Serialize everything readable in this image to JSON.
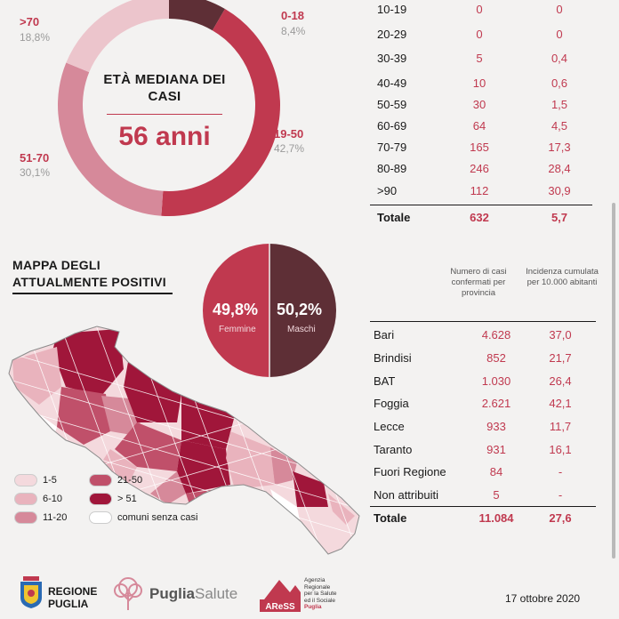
{
  "chart_data": [
    {
      "type": "pie",
      "title": "ETÀ MEDIANA DEI CASI",
      "center_value": "56 anni",
      "slices": [
        {
          "label": "0-18",
          "pct_text": "8,4%",
          "value": 8.4,
          "color": "#5e2f36"
        },
        {
          "label": "19-50",
          "pct_text": "42,7%",
          "value": 42.7,
          "color": "#c0394f"
        },
        {
          "label": "51-70",
          "pct_text": "30,1%",
          "value": 30.1,
          "color": "#d6899a"
        },
        {
          "label": ">70",
          "pct_text": "18,8%",
          "value": 18.8,
          "color": "#ecc5cc"
        }
      ]
    },
    {
      "type": "table",
      "rows": [
        {
          "age": "10-19",
          "cases": "0",
          "rate": "0"
        },
        {
          "age": "20-29",
          "cases": "0",
          "rate": "0"
        },
        {
          "age": "30-39",
          "cases": "5",
          "rate": "0,4"
        },
        {
          "age": "40-49",
          "cases": "10",
          "rate": "0,6"
        },
        {
          "age": "50-59",
          "cases": "30",
          "rate": "1,5"
        },
        {
          "age": "60-69",
          "cases": "64",
          "rate": "4,5"
        },
        {
          "age": "70-79",
          "cases": "165",
          "rate": "17,3"
        },
        {
          "age": "80-89",
          "cases": "246",
          "rate": "28,4"
        },
        {
          "age": ">90",
          "cases": "112",
          "rate": "30,9"
        }
      ],
      "total": {
        "label": "Totale",
        "cases": "632",
        "rate": "5,7"
      }
    },
    {
      "type": "pie",
      "slices": [
        {
          "label": "Femmine",
          "pct_text": "49,8%",
          "value": 49.8,
          "color": "#c0394f"
        },
        {
          "label": "Maschi",
          "pct_text": "50,2%",
          "value": 50.2,
          "color": "#5e2f36"
        }
      ]
    },
    {
      "type": "table",
      "headers": [
        "Numero di casi confermati per provincia",
        "Incidenza cumulata per 10.000 abitanti"
      ],
      "rows": [
        {
          "name": "Bari",
          "cases": "4.628",
          "rate": "37,0"
        },
        {
          "name": "Brindisi",
          "cases": "852",
          "rate": "21,7"
        },
        {
          "name": "BAT",
          "cases": "1.030",
          "rate": "26,4"
        },
        {
          "name": "Foggia",
          "cases": "2.621",
          "rate": "42,1"
        },
        {
          "name": "Lecce",
          "cases": "933",
          "rate": "11,7"
        },
        {
          "name": "Taranto",
          "cases": "931",
          "rate": "16,1"
        },
        {
          "name": "Fuori Regione",
          "cases": "84",
          "rate": "-"
        },
        {
          "name": "Non attribuiti",
          "cases": "5",
          "rate": "-"
        }
      ],
      "total": {
        "name": "Totale",
        "cases": "11.084",
        "rate": "27,6"
      }
    }
  ],
  "map": {
    "title_line1": "MAPPA DEGLI",
    "title_line2": "ATTUALMENTE POSITIVI",
    "legend": [
      {
        "label": "1-5",
        "color": "#f4d9dd"
      },
      {
        "label": "6-10",
        "color": "#e9b3bd"
      },
      {
        "label": "11-20",
        "color": "#d6899a"
      },
      {
        "label": "21-50",
        "color": "#c0506a"
      },
      {
        "label": "> 51",
        "color": "#a0163a"
      },
      {
        "label": "comuni senza casi",
        "color": "#ffffff"
      }
    ]
  },
  "footer": {
    "region_line1": "REGIONE",
    "region_line2": "PUGLIA",
    "puglia": "Puglia",
    "salute": "Salute",
    "aress_logo": "AReSS",
    "aress_line1": "Agenzia",
    "aress_line2": "Regionale",
    "aress_line3": "per la Salute",
    "aress_line4": "ed il Sociale",
    "aress_line5": "Puglia",
    "date": "17 ottobre 2020"
  }
}
